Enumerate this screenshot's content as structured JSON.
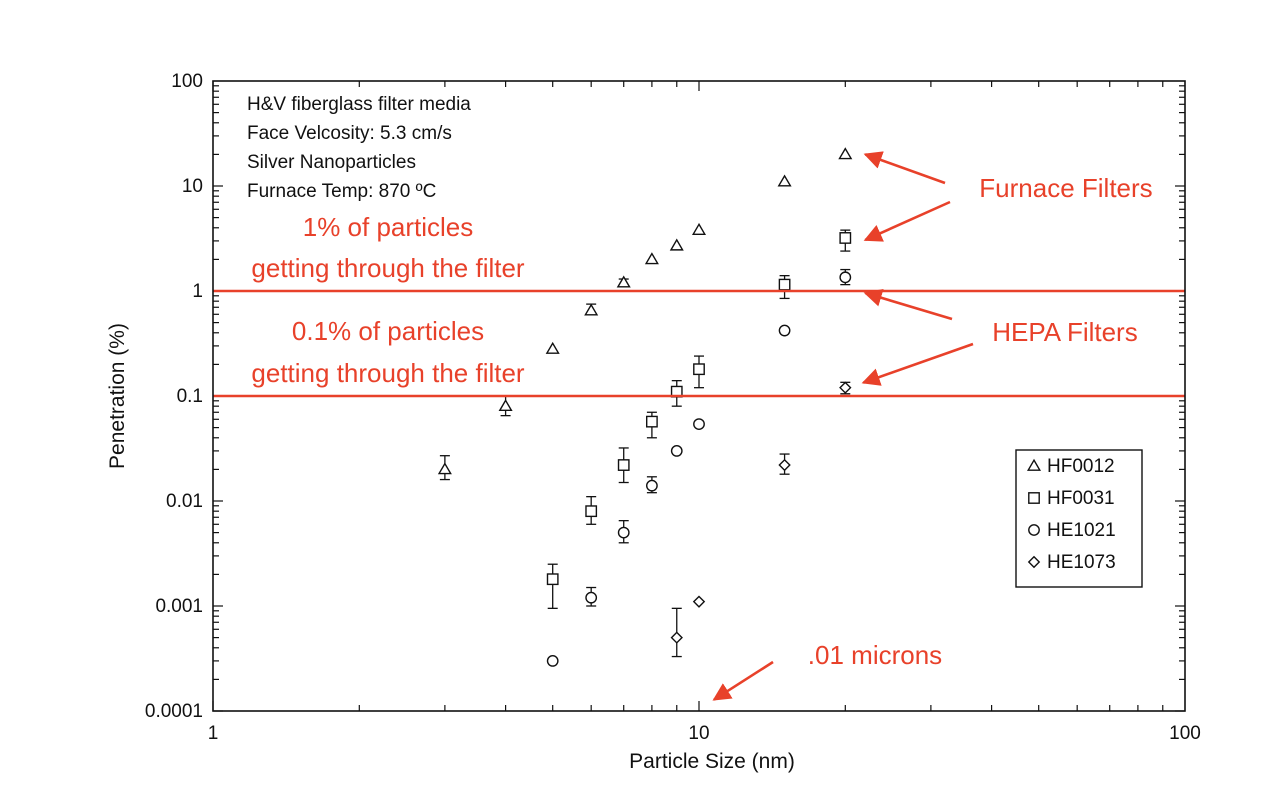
{
  "chart_data": {
    "type": "scatter",
    "title": "",
    "xlabel": "Particle Size (nm)",
    "ylabel": "Penetration (%)",
    "x_scale": "log",
    "y_scale": "log",
    "xlim": [
      1,
      100
    ],
    "ylim": [
      0.0001,
      100
    ],
    "x_ticks": [
      {
        "value": 1,
        "label": "1"
      },
      {
        "value": 10,
        "label": "10"
      },
      {
        "value": 100,
        "label": "100"
      }
    ],
    "y_ticks": [
      {
        "value": 0.0001,
        "label": "0.0001"
      },
      {
        "value": 0.001,
        "label": "0.001"
      },
      {
        "value": 0.01,
        "label": "0.01"
      },
      {
        "value": 0.1,
        "label": "0.1"
      },
      {
        "value": 1,
        "label": "1"
      },
      {
        "value": 10,
        "label": "10"
      },
      {
        "value": 100,
        "label": "100"
      }
    ],
    "grid": false,
    "legend_position": "lower-right",
    "info_lines": [
      "H&V fiberglass filter media",
      "Face Velcosity: 5.3 cm/s",
      "Silver Nanoparticles",
      "Furnace Temp: 870 ºC"
    ],
    "series": [
      {
        "name": "HF0012",
        "marker": "triangle",
        "points": [
          {
            "x": 3,
            "y": 0.02,
            "low": 0.016,
            "high": 0.027
          },
          {
            "x": 4,
            "y": 0.08,
            "low": 0.065,
            "high": 0.1
          },
          {
            "x": 5,
            "y": 0.28
          },
          {
            "x": 6,
            "y": 0.65,
            "low": 0.6,
            "high": 0.75
          },
          {
            "x": 7,
            "y": 1.2,
            "low": 1.1,
            "high": 1.3
          },
          {
            "x": 8,
            "y": 2.0
          },
          {
            "x": 9,
            "y": 2.7
          },
          {
            "x": 10,
            "y": 3.8
          },
          {
            "x": 15,
            "y": 11
          },
          {
            "x": 20,
            "y": 20
          }
        ]
      },
      {
        "name": "HF0031",
        "marker": "square",
        "points": [
          {
            "x": 5,
            "y": 0.0018,
            "low": 0.00095,
            "high": 0.0025
          },
          {
            "x": 6,
            "y": 0.008,
            "low": 0.006,
            "high": 0.011
          },
          {
            "x": 7,
            "y": 0.022,
            "low": 0.015,
            "high": 0.032
          },
          {
            "x": 8,
            "y": 0.057,
            "low": 0.04,
            "high": 0.07
          },
          {
            "x": 9,
            "y": 0.11,
            "low": 0.08,
            "high": 0.14
          },
          {
            "x": 10,
            "y": 0.18,
            "low": 0.12,
            "high": 0.24
          },
          {
            "x": 15,
            "y": 1.15,
            "low": 0.85,
            "high": 1.4
          },
          {
            "x": 20,
            "y": 3.2,
            "low": 2.4,
            "high": 3.8
          }
        ]
      },
      {
        "name": "HE1021",
        "marker": "circle",
        "points": [
          {
            "x": 5,
            "y": 0.0003
          },
          {
            "x": 6,
            "y": 0.0012,
            "low": 0.001,
            "high": 0.0015
          },
          {
            "x": 7,
            "y": 0.005,
            "low": 0.004,
            "high": 0.0065
          },
          {
            "x": 8,
            "y": 0.014,
            "low": 0.012,
            "high": 0.017
          },
          {
            "x": 9,
            "y": 0.03
          },
          {
            "x": 10,
            "y": 0.054
          },
          {
            "x": 15,
            "y": 0.42
          },
          {
            "x": 20,
            "y": 1.35,
            "low": 1.15,
            "high": 1.6
          }
        ]
      },
      {
        "name": "HE1073",
        "marker": "diamond",
        "points": [
          {
            "x": 9,
            "y": 0.0005,
            "low": 0.00033,
            "high": 0.00095
          },
          {
            "x": 10,
            "y": 0.0011
          },
          {
            "x": 15,
            "y": 0.022,
            "low": 0.018,
            "high": 0.028
          },
          {
            "x": 20,
            "y": 0.12,
            "low": 0.105,
            "high": 0.135
          }
        ]
      }
    ],
    "reference_lines": [
      {
        "y": 1,
        "color": "#e8412a"
      },
      {
        "y": 0.1,
        "color": "#e8412a"
      }
    ],
    "annotations": {
      "color": "#e8412a",
      "line_1pct": [
        "1% of particles",
        "getting through the filter"
      ],
      "line_01pct": [
        "0.1% of particles",
        "getting through the filter"
      ],
      "furnace_label": "Furnace Filters",
      "hepa_label": "HEPA Filters",
      "micron_label": ".01 microns",
      "furnace_targets": [
        {
          "x": 20,
          "y": 20
        },
        {
          "x": 20,
          "y": 3.2
        }
      ],
      "hepa_targets": [
        {
          "x": 20,
          "y": 1
        },
        {
          "x": 20,
          "y": 0.12
        }
      ],
      "micron_target": {
        "x": 10,
        "y": 0.00012
      }
    }
  }
}
